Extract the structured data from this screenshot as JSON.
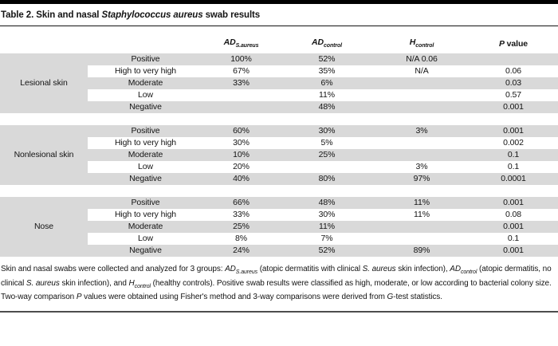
{
  "title": {
    "segments": [
      {
        "t": "Table 2. Skin and nasal ",
        "s": "n"
      },
      {
        "t": "Staphylococcus aureus",
        "s": "i"
      },
      {
        "t": " swab results",
        "s": "n"
      }
    ]
  },
  "header": {
    "cols": [
      {
        "base": "AD",
        "sub": "S.aureus"
      },
      {
        "base": "AD",
        "sub": "control"
      },
      {
        "base": "H",
        "sub": "control"
      },
      {
        "base": "P",
        "rest": " value"
      }
    ]
  },
  "sections": [
    {
      "label": "Lesional skin",
      "rows": [
        {
          "category": "Positive",
          "ad_saureus": "100%",
          "ad_control": "52%",
          "h_control": "N/A 0.06",
          "p_value": ""
        },
        {
          "category": "High to very high",
          "ad_saureus": "67%",
          "ad_control": "35%",
          "h_control": "N/A",
          "p_value": "0.06"
        },
        {
          "category": "Moderate",
          "ad_saureus": "33%",
          "ad_control": "6%",
          "h_control": "",
          "p_value": "0.03"
        },
        {
          "category": "Low",
          "ad_saureus": "",
          "ad_control": "11%",
          "h_control": "",
          "p_value": "0.57"
        },
        {
          "category": "Negative",
          "ad_saureus": "",
          "ad_control": "48%",
          "h_control": "",
          "p_value": "0.001"
        }
      ]
    },
    {
      "label": "Nonlesional skin",
      "rows": [
        {
          "category": "Positive",
          "ad_saureus": "60%",
          "ad_control": "30%",
          "h_control": "3%",
          "p_value": "0.001"
        },
        {
          "category": "High to very high",
          "ad_saureus": "30%",
          "ad_control": "5%",
          "h_control": "",
          "p_value": "0.002"
        },
        {
          "category": "Moderate",
          "ad_saureus": "10%",
          "ad_control": "25%",
          "h_control": "",
          "p_value": "0.1"
        },
        {
          "category": "Low",
          "ad_saureus": "20%",
          "ad_control": "",
          "h_control": "3%",
          "p_value": "0.1"
        },
        {
          "category": "Negative",
          "ad_saureus": "40%",
          "ad_control": "80%",
          "h_control": "97%",
          "p_value": "0.0001"
        }
      ]
    },
    {
      "label": "Nose",
      "rows": [
        {
          "category": "Positive",
          "ad_saureus": "66%",
          "ad_control": "48%",
          "h_control": "11%",
          "p_value": "0.001"
        },
        {
          "category": "High to very high",
          "ad_saureus": "33%",
          "ad_control": "30%",
          "h_control": "11%",
          "p_value": "0.08"
        },
        {
          "category": "Moderate",
          "ad_saureus": "25%",
          "ad_control": "11%",
          "h_control": "",
          "p_value": "0.001"
        },
        {
          "category": "Low",
          "ad_saureus": "8%",
          "ad_control": "7%",
          "h_control": "",
          "p_value": "0.1"
        },
        {
          "category": "Negative",
          "ad_saureus": "24%",
          "ad_control": "52%",
          "h_control": "89%",
          "p_value": "0.001"
        }
      ]
    }
  ],
  "footnote": {
    "segments": [
      {
        "t": "Skin and nasal swabs were collected and analyzed for 3 groups: ",
        "s": "n"
      },
      {
        "t": "AD",
        "s": "i"
      },
      {
        "t": "S.aureus",
        "s": "si"
      },
      {
        "t": " (atopic dermatitis with clinical ",
        "s": "n"
      },
      {
        "t": "S. aureus",
        "s": "i"
      },
      {
        "t": " skin infection), ",
        "s": "n"
      },
      {
        "t": "AD",
        "s": "i"
      },
      {
        "t": "control",
        "s": "si"
      },
      {
        "t": " (atopic dermatitis, no clinical ",
        "s": "n"
      },
      {
        "t": "S. aureus",
        "s": "i"
      },
      {
        "t": " skin infection), and ",
        "s": "n"
      },
      {
        "t": "H",
        "s": "i"
      },
      {
        "t": "control",
        "s": "si"
      },
      {
        "t": " (healthy controls). Positive swab results were classified as high, moderate, or low according to bacterial colony size. Two-way comparison ",
        "s": "n"
      },
      {
        "t": "P",
        "s": "i"
      },
      {
        "t": " values were obtained using Fisher's method and 3-way comparisons were derived from ",
        "s": "n"
      },
      {
        "t": "G",
        "s": "i"
      },
      {
        "t": "-test statistics.",
        "s": "n"
      }
    ]
  },
  "colors": {
    "row_shade": "#d9d9d9",
    "top_bar": "#000000",
    "bottom_rule": "#4d4d4d"
  }
}
